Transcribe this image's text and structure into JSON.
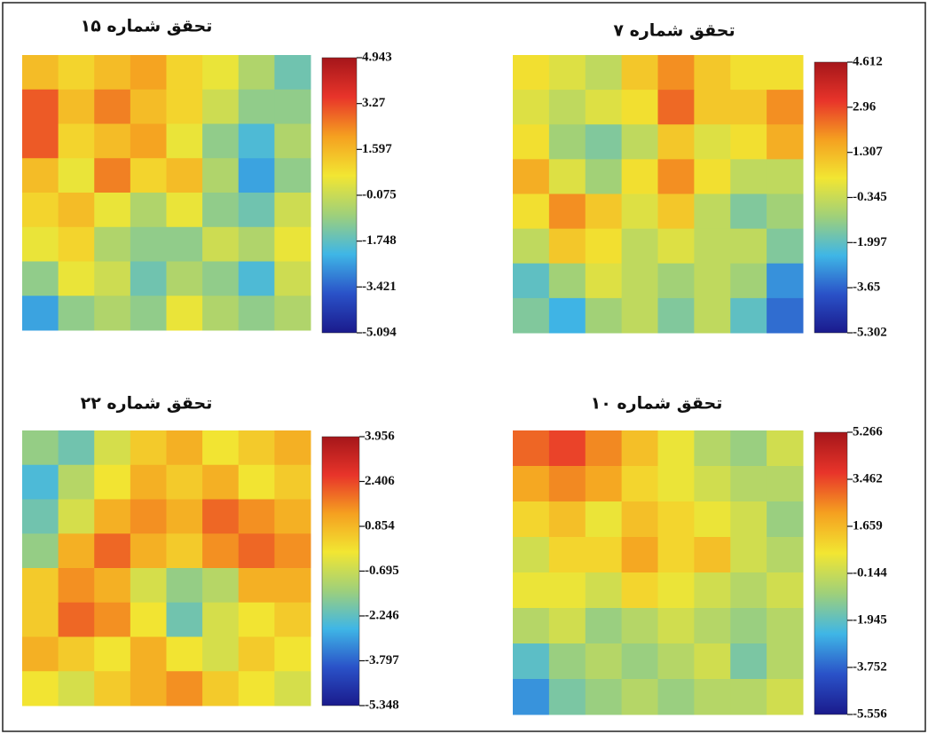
{
  "chart_data": [
    {
      "type": "heatmap",
      "title": "تحقق شماره ۱۵",
      "colormap": [
        "#1a1a8c",
        "#2a52c8",
        "#3fb6e6",
        "#9fd07a",
        "#f2e632",
        "#f5a020",
        "#e8342a",
        "#a5161a"
      ],
      "zlim": [
        -5.094,
        4.943
      ],
      "zticks": [
        4.943,
        3.27,
        1.597,
        -0.075,
        -1.748,
        -3.421,
        -5.094
      ],
      "z": [
        [
          1.5,
          1.0,
          1.5,
          2.0,
          1.0,
          0.5,
          -0.5,
          -1.5
        ],
        [
          3.0,
          1.5,
          2.5,
          1.5,
          1.0,
          0.0,
          -1.0,
          -1.0
        ],
        [
          3.0,
          1.0,
          1.5,
          2.0,
          0.5,
          -1.0,
          -2.0,
          -0.5
        ],
        [
          1.5,
          0.5,
          2.5,
          1.0,
          1.5,
          -0.5,
          -2.5,
          -1.0
        ],
        [
          1.0,
          1.5,
          0.5,
          -0.5,
          0.5,
          -1.0,
          -1.5,
          0.0
        ],
        [
          0.5,
          1.0,
          -0.5,
          -1.0,
          -1.0,
          0.0,
          -0.5,
          0.5
        ],
        [
          -1.0,
          0.5,
          0.0,
          -1.5,
          -0.5,
          -1.0,
          -2.0,
          0.0
        ],
        [
          -2.5,
          -1.0,
          -0.5,
          -1.0,
          0.5,
          -0.5,
          -1.0,
          -0.5
        ]
      ]
    },
    {
      "type": "heatmap",
      "title": "تحقق شماره ۷",
      "colormap": [
        "#1a1a8c",
        "#2a52c8",
        "#3fb6e6",
        "#9fd07a",
        "#f2e632",
        "#f5a020",
        "#e8342a",
        "#a5161a"
      ],
      "zlim": [
        -5.302,
        4.612
      ],
      "zticks": [
        4.612,
        2.96,
        1.307,
        -0.345,
        -1.997,
        -3.65,
        -5.302
      ],
      "z": [
        [
          0.5,
          0.0,
          -0.5,
          1.0,
          2.0,
          1.0,
          0.5,
          0.5
        ],
        [
          0.0,
          -0.5,
          0.0,
          0.5,
          2.5,
          1.0,
          1.0,
          2.0
        ],
        [
          0.5,
          -1.0,
          -1.5,
          -0.5,
          1.0,
          0.0,
          0.5,
          1.5
        ],
        [
          1.5,
          0.0,
          -1.0,
          0.5,
          2.0,
          0.5,
          -0.5,
          -0.5
        ],
        [
          0.5,
          2.0,
          1.0,
          0.0,
          1.0,
          -0.5,
          -1.5,
          -1.0
        ],
        [
          -0.5,
          1.0,
          0.5,
          -0.5,
          0.0,
          -0.5,
          -0.5,
          -1.5
        ],
        [
          -2.0,
          -1.0,
          0.0,
          -0.5,
          -1.0,
          -0.5,
          -1.0,
          -3.0
        ],
        [
          -1.5,
          -2.5,
          -1.0,
          -0.5,
          -1.5,
          -0.5,
          -2.0,
          -3.5
        ]
      ]
    },
    {
      "type": "heatmap",
      "title": "تحقق شماره ۲۲",
      "colormap": [
        "#1a1a8c",
        "#2a52c8",
        "#3fb6e6",
        "#9fd07a",
        "#f2e632",
        "#f5a020",
        "#e8342a",
        "#a5161a"
      ],
      "zlim": [
        -5.348,
        3.956
      ],
      "zticks": [
        3.956,
        2.406,
        0.854,
        -0.695,
        -2.246,
        -3.797,
        -5.348
      ],
      "z": [
        [
          -1.5,
          -2.0,
          -0.5,
          0.5,
          1.0,
          0.0,
          0.5,
          1.0
        ],
        [
          -2.5,
          -1.0,
          0.0,
          1.0,
          0.5,
          1.0,
          0.0,
          0.5
        ],
        [
          -2.0,
          -0.5,
          1.0,
          1.5,
          1.0,
          2.0,
          1.5,
          1.0
        ],
        [
          -1.5,
          1.0,
          2.0,
          1.0,
          0.5,
          1.5,
          2.0,
          1.5
        ],
        [
          0.5,
          1.5,
          1.0,
          -0.5,
          -1.5,
          -1.0,
          1.0,
          1.0
        ],
        [
          0.5,
          2.0,
          1.5,
          0.0,
          -2.0,
          -0.5,
          0.0,
          0.5
        ],
        [
          1.0,
          0.5,
          0.0,
          1.0,
          0.0,
          -0.5,
          0.5,
          0.0
        ],
        [
          0.0,
          -0.5,
          0.5,
          1.0,
          1.5,
          0.5,
          0.0,
          -0.5
        ]
      ]
    },
    {
      "type": "heatmap",
      "title": "تحقق شماره ۱۰",
      "colormap": [
        "#1a1a8c",
        "#2a52c8",
        "#3fb6e6",
        "#9fd07a",
        "#f2e632",
        "#f5a020",
        "#e8342a",
        "#a5161a"
      ],
      "zlim": [
        -5.556,
        5.266
      ],
      "zticks": [
        5.266,
        3.462,
        1.659,
        -0.144,
        -1.945,
        -3.752,
        -5.556
      ],
      "z": [
        [
          3.0,
          3.5,
          2.5,
          1.5,
          0.5,
          -0.5,
          -1.0,
          0.0
        ],
        [
          2.0,
          2.5,
          2.0,
          1.0,
          0.5,
          0.0,
          -0.5,
          -0.5
        ],
        [
          1.0,
          1.5,
          0.5,
          1.5,
          1.0,
          0.5,
          0.0,
          -1.0
        ],
        [
          0.0,
          1.0,
          1.0,
          2.0,
          1.0,
          1.5,
          0.0,
          -0.5
        ],
        [
          0.5,
          0.5,
          0.0,
          1.0,
          0.5,
          0.0,
          -0.5,
          0.0
        ],
        [
          -0.5,
          0.0,
          -1.0,
          -0.5,
          0.0,
          -0.5,
          -1.0,
          -0.5
        ],
        [
          -2.0,
          -1.0,
          -0.5,
          -1.0,
          -0.5,
          0.0,
          -1.5,
          -0.5
        ],
        [
          -3.0,
          -1.5,
          -1.0,
          -0.5,
          -1.0,
          -0.5,
          -0.5,
          0.0
        ]
      ]
    }
  ]
}
